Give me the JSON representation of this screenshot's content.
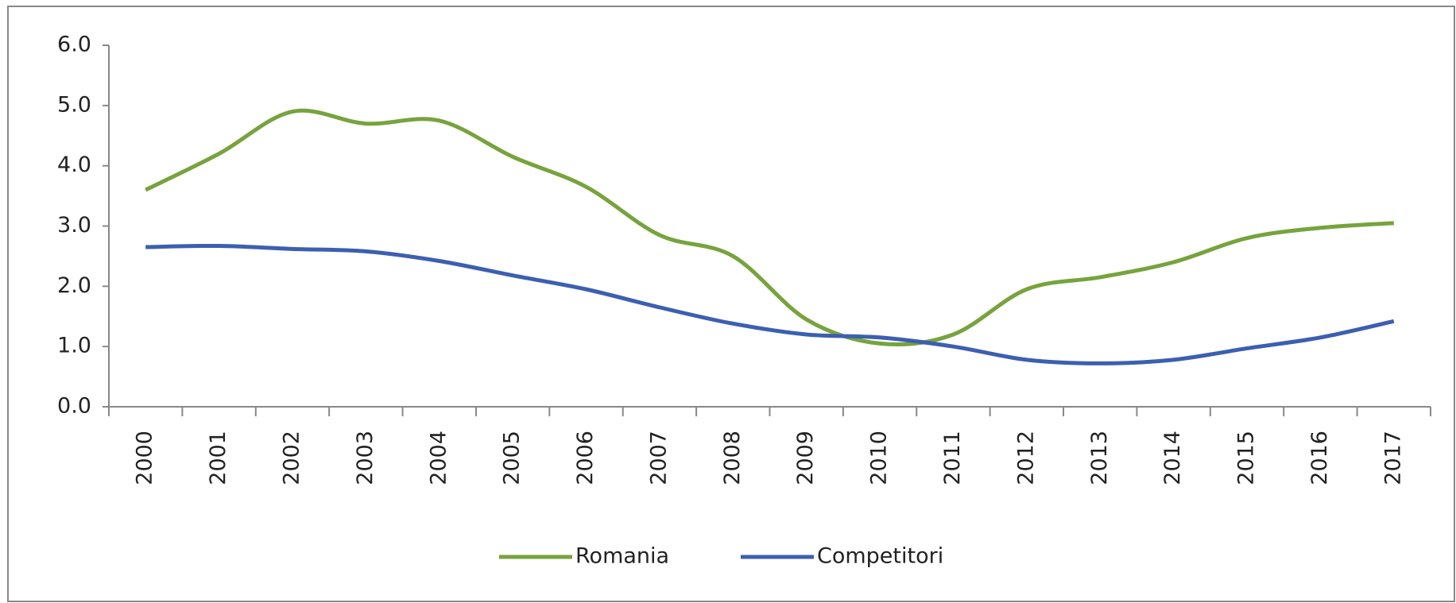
{
  "chart_data": {
    "type": "line",
    "categories": [
      "2000",
      "2001",
      "2002",
      "2003",
      "2004",
      "2005",
      "2006",
      "2007",
      "2008",
      "2009",
      "2010",
      "2011",
      "2012",
      "2013",
      "2014",
      "2015",
      "2016",
      "2017"
    ],
    "series": [
      {
        "name": "Romania",
        "color": "#77a33d",
        "values": [
          3.6,
          4.2,
          4.9,
          4.7,
          4.75,
          4.15,
          3.65,
          2.85,
          2.5,
          1.45,
          1.05,
          1.2,
          1.95,
          2.15,
          2.4,
          2.8,
          2.97,
          3.05
        ]
      },
      {
        "name": "Competitori",
        "color": "#3c5fb0",
        "values": [
          2.65,
          2.67,
          2.62,
          2.58,
          2.42,
          2.18,
          1.95,
          1.65,
          1.38,
          1.2,
          1.15,
          1.0,
          0.78,
          0.72,
          0.78,
          0.97,
          1.15,
          1.42
        ]
      }
    ],
    "ylim": [
      0,
      6
    ],
    "yticks": [
      {
        "value": 0,
        "label": "0.0"
      },
      {
        "value": 1,
        "label": "1.0"
      },
      {
        "value": 2,
        "label": "2.0"
      },
      {
        "value": 3,
        "label": "3.0"
      },
      {
        "value": 4,
        "label": "4.0"
      },
      {
        "value": 5,
        "label": "5.0"
      },
      {
        "value": 6,
        "label": "6.0"
      }
    ],
    "legend": "bottom",
    "smooth": true
  }
}
